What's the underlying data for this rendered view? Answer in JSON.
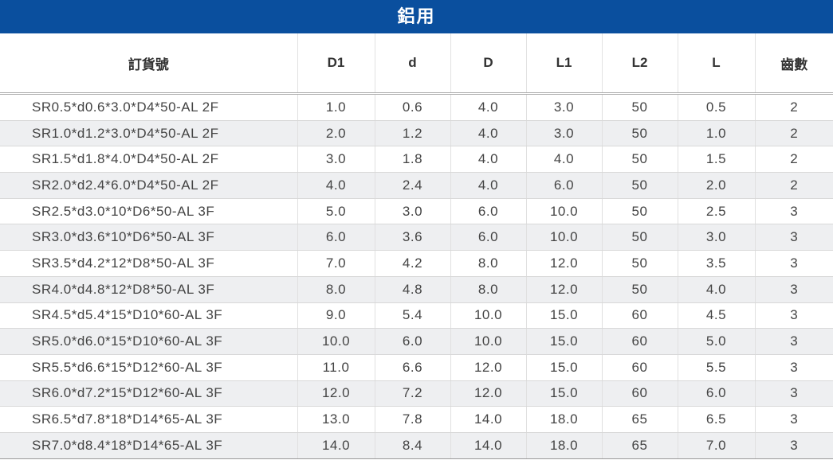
{
  "title": "鋁用",
  "headers": [
    "訂貨號",
    "D1",
    "d",
    "D",
    "L1",
    "L2",
    "L",
    "齒數"
  ],
  "rows": [
    [
      "SR0.5*d0.6*3.0*D4*50-AL 2F",
      "1.0",
      "0.6",
      "4.0",
      "3.0",
      "50",
      "0.5",
      "2"
    ],
    [
      "SR1.0*d1.2*3.0*D4*50-AL 2F",
      "2.0",
      "1.2",
      "4.0",
      "3.0",
      "50",
      "1.0",
      "2"
    ],
    [
      "SR1.5*d1.8*4.0*D4*50-AL 2F",
      "3.0",
      "1.8",
      "4.0",
      "4.0",
      "50",
      "1.5",
      "2"
    ],
    [
      "SR2.0*d2.4*6.0*D4*50-AL 2F",
      "4.0",
      "2.4",
      "4.0",
      "6.0",
      "50",
      "2.0",
      "2"
    ],
    [
      "SR2.5*d3.0*10*D6*50-AL 3F",
      "5.0",
      "3.0",
      "6.0",
      "10.0",
      "50",
      "2.5",
      "3"
    ],
    [
      "SR3.0*d3.6*10*D6*50-AL 3F",
      "6.0",
      "3.6",
      "6.0",
      "10.0",
      "50",
      "3.0",
      "3"
    ],
    [
      "SR3.5*d4.2*12*D8*50-AL 3F",
      "7.0",
      "4.2",
      "8.0",
      "12.0",
      "50",
      "3.5",
      "3"
    ],
    [
      "SR4.0*d4.8*12*D8*50-AL 3F",
      "8.0",
      "4.8",
      "8.0",
      "12.0",
      "50",
      "4.0",
      "3"
    ],
    [
      "SR4.5*d5.4*15*D10*60-AL 3F",
      "9.0",
      "5.4",
      "10.0",
      "15.0",
      "60",
      "4.5",
      "3"
    ],
    [
      "SR5.0*d6.0*15*D10*60-AL 3F",
      "10.0",
      "6.0",
      "10.0",
      "15.0",
      "60",
      "5.0",
      "3"
    ],
    [
      "SR5.5*d6.6*15*D12*60-AL 3F",
      "11.0",
      "6.6",
      "12.0",
      "15.0",
      "60",
      "5.5",
      "3"
    ],
    [
      "SR6.0*d7.2*15*D12*60-AL 3F",
      "12.0",
      "7.2",
      "12.0",
      "15.0",
      "60",
      "6.0",
      "3"
    ],
    [
      "SR6.5*d7.8*18*D14*65-AL 3F",
      "13.0",
      "7.8",
      "14.0",
      "18.0",
      "65",
      "6.5",
      "3"
    ],
    [
      "SR7.0*d8.4*18*D14*65-AL 3F",
      "14.0",
      "8.4",
      "14.0",
      "18.0",
      "65",
      "7.0",
      "3"
    ]
  ]
}
